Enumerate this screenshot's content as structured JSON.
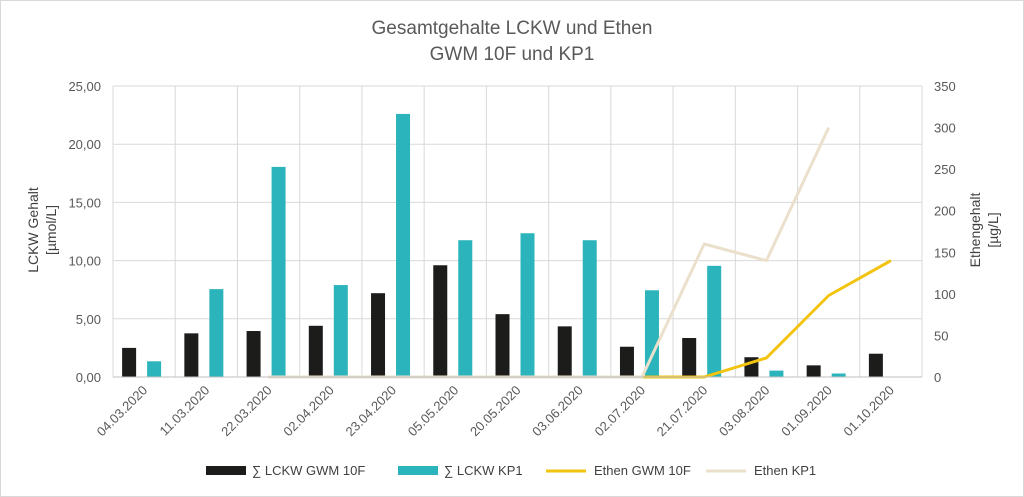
{
  "chart_data": {
    "type": "bar",
    "title": [
      "Gesamtgehalte LCKW und Ethen",
      "GWM 10F und KP1"
    ],
    "ylabel_left": [
      "LCKW Gehalt",
      "[µmol/L]"
    ],
    "ylabel_right": [
      "Ethengehalt",
      "[µg/L]"
    ],
    "categories": [
      "04.03.2020",
      "11.03.2020",
      "22.03.2020",
      "02.04.2020",
      "23.04.2020",
      "05.05.2020",
      "20.05.2020",
      "03.06.2020",
      "02.07.2020",
      "21.07.2020",
      "03.08.2020",
      "01.09.2020",
      "01.10.2020"
    ],
    "ylim_left": [
      0,
      25
    ],
    "yticks_left": [
      "0,00",
      "5,00",
      "10,00",
      "15,00",
      "20,00",
      "25,00"
    ],
    "ylim_right": [
      0,
      350
    ],
    "yticks_right": [
      "0",
      "50",
      "100",
      "150",
      "200",
      "250",
      "300",
      "350"
    ],
    "grid": true,
    "legend_position": "bottom",
    "series": [
      {
        "name": "∑ LCKW GWM 10F",
        "type": "bar",
        "axis": "left",
        "color": "#1c1c1a",
        "values": [
          2.5,
          3.75,
          3.95,
          4.4,
          7.2,
          9.6,
          5.4,
          4.35,
          2.6,
          3.35,
          1.7,
          1.0,
          2.0
        ]
      },
      {
        "name": "∑ LCKW KP1",
        "type": "bar",
        "axis": "left",
        "color": "#2bb4bb",
        "values": [
          1.35,
          7.55,
          18.05,
          7.9,
          22.6,
          11.75,
          12.35,
          11.75,
          7.45,
          9.55,
          0.55,
          0.3,
          null
        ]
      },
      {
        "name": "Ethen GWM 10F",
        "type": "line",
        "axis": "right",
        "color": "#f2c40f",
        "values": [
          null,
          null,
          0,
          0,
          0,
          0,
          0,
          0,
          0,
          0,
          23,
          98,
          140
        ]
      },
      {
        "name": "Ethen KP1",
        "type": "line",
        "axis": "right",
        "color": "#ebe0cc",
        "values": [
          null,
          null,
          0,
          0,
          0,
          0,
          0,
          0,
          0,
          160,
          140,
          300,
          null
        ]
      }
    ]
  }
}
